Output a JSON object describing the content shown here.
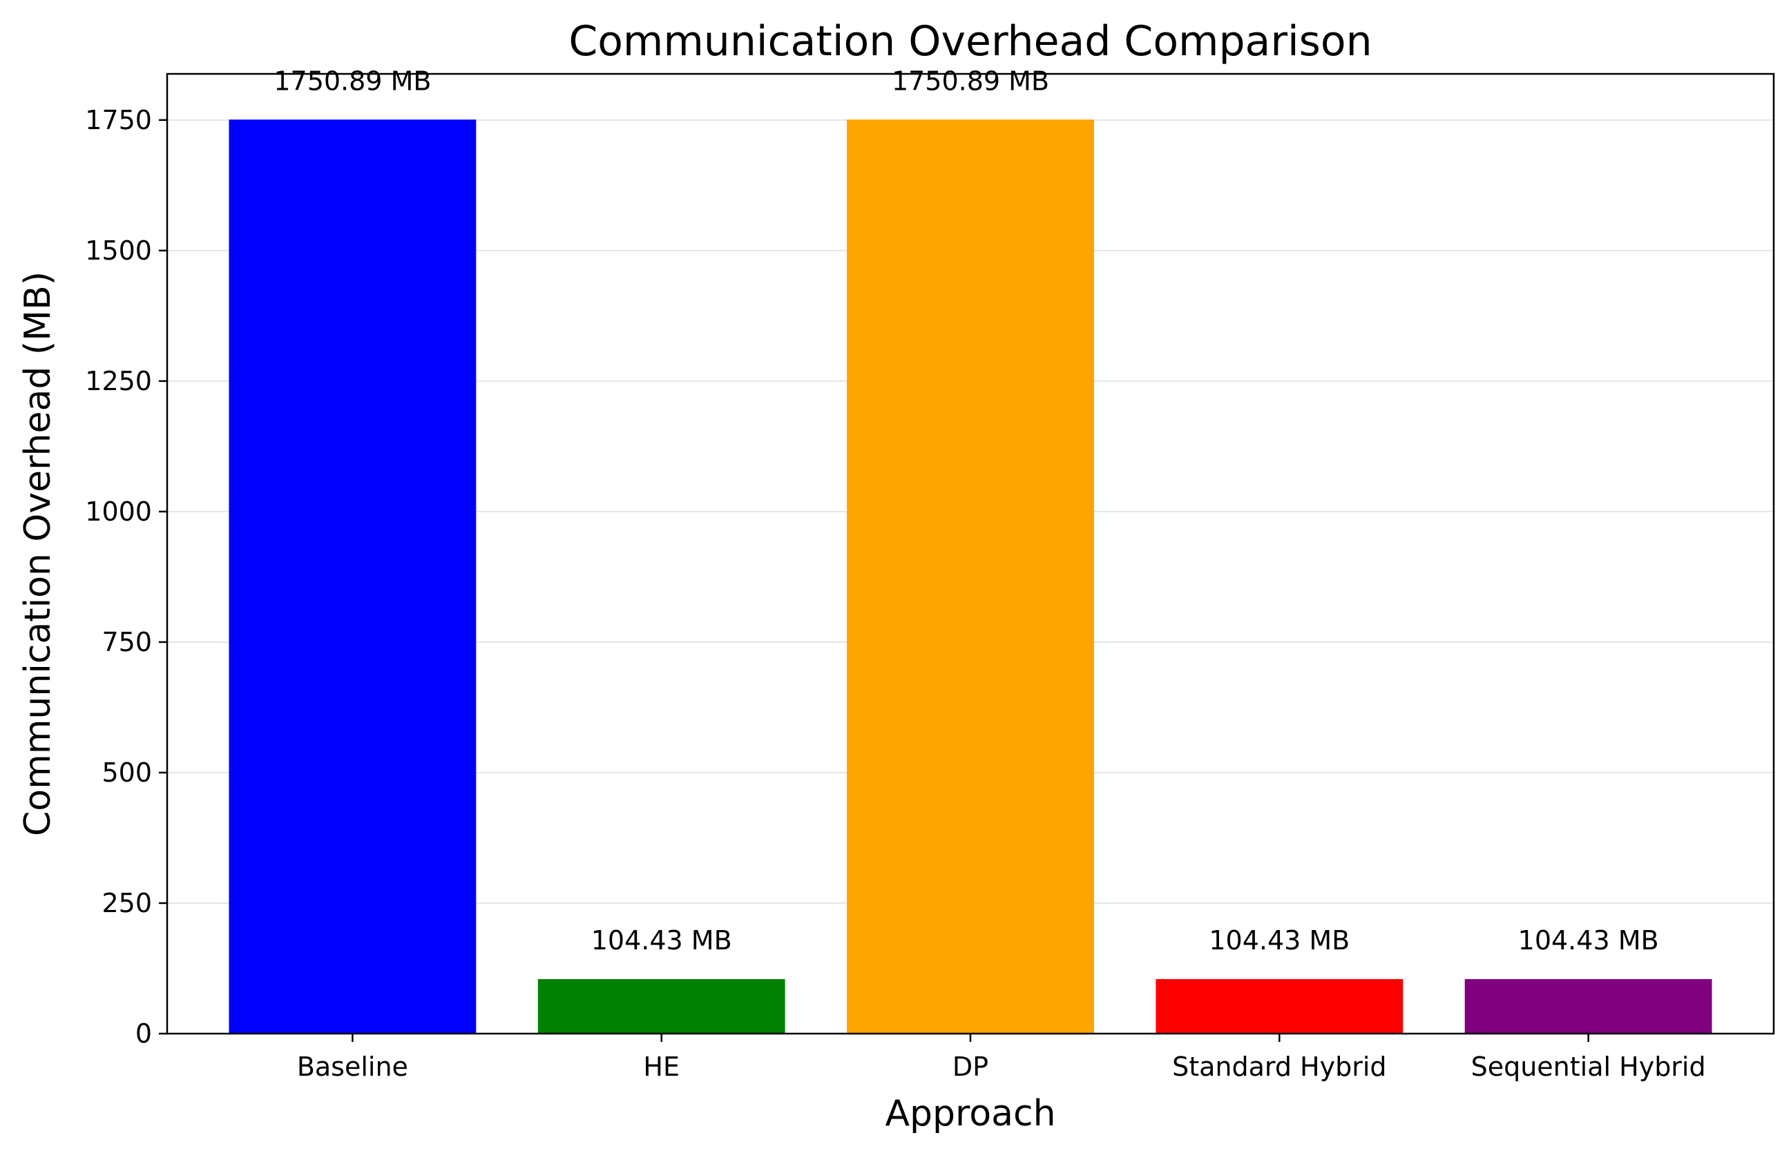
{
  "chart_data": {
    "type": "bar",
    "title": "Communication Overhead Comparison",
    "xlabel": "Approach",
    "ylabel": "Communication Overhead (MB)",
    "categories": [
      "Baseline",
      "HE",
      "DP",
      "Standard Hybrid",
      "Sequential Hybrid"
    ],
    "values": [
      1750.89,
      104.43,
      1750.89,
      104.43,
      104.43
    ],
    "data_labels": [
      "1750.89 MB",
      "104.43 MB",
      "1750.89 MB",
      "104.43 MB",
      "104.43 MB"
    ],
    "colors": [
      "#0000ff",
      "#008000",
      "#ffa500",
      "#ff0000",
      "#800080"
    ],
    "ylim": [
      0,
      1838.43
    ],
    "yticks": [
      0,
      250,
      500,
      750,
      1000,
      1250,
      1500,
      1750
    ],
    "ytick_labels": [
      "0",
      "250",
      "500",
      "750",
      "1000",
      "1250",
      "1500",
      "1750"
    ],
    "grid": "horizontal",
    "legend": "none"
  }
}
